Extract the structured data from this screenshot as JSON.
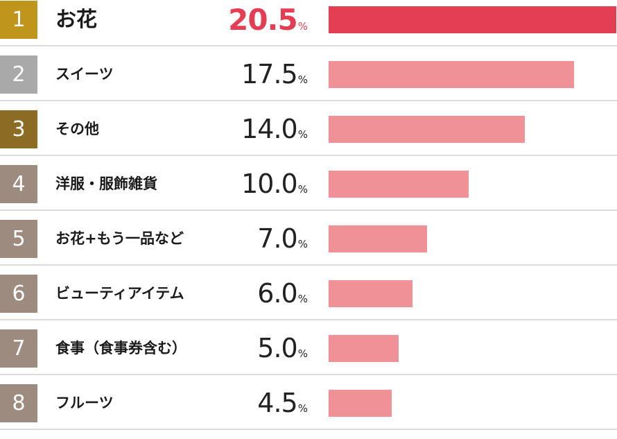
{
  "chart_data": {
    "type": "bar",
    "orientation": "horizontal",
    "unit": "%",
    "xlim": [
      0,
      20.5
    ],
    "categories": [
      "お花",
      "スイーツ",
      "その他",
      "洋服・服飾雑貨",
      "お花+もう一品など",
      "ビューティアイテム",
      "食事（食事券含む）",
      "フルーツ"
    ],
    "ranks": [
      "1",
      "2",
      "3",
      "4",
      "5",
      "6",
      "7",
      "8"
    ],
    "values": [
      20.5,
      17.5,
      14.0,
      10.0,
      7.0,
      6.0,
      5.0,
      4.5
    ],
    "value_labels": [
      "20.5",
      "17.5",
      "14.0",
      "10.0",
      "7.0",
      "6.0",
      "5.0",
      "4.5"
    ],
    "rank_colors": [
      "#c0951c",
      "#a9a9a9",
      "#8c6c24",
      "#9c8b7e",
      "#9c8b7e",
      "#9c8b7e",
      "#9c8b7e",
      "#9c8b7e"
    ],
    "top_bar_color": "#e43e55",
    "bar_color": "#f09197",
    "top_value_color": "#e43e55"
  }
}
